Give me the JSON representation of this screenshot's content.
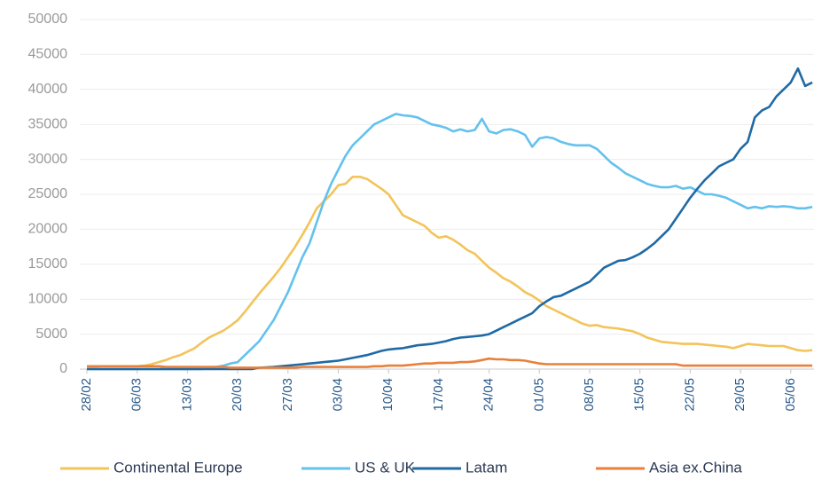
{
  "chart_data": {
    "type": "line",
    "categories": [
      "28/02",
      null,
      null,
      null,
      null,
      null,
      null,
      "06/03",
      null,
      null,
      null,
      null,
      null,
      null,
      "13/03",
      null,
      null,
      null,
      null,
      null,
      null,
      "20/03",
      null,
      null,
      null,
      null,
      null,
      null,
      "27/03",
      null,
      null,
      null,
      null,
      null,
      null,
      "03/04",
      null,
      null,
      null,
      null,
      null,
      null,
      "10/04",
      null,
      null,
      null,
      null,
      null,
      null,
      "17/04",
      null,
      null,
      null,
      null,
      null,
      null,
      "24/04",
      null,
      null,
      null,
      null,
      null,
      null,
      "01/05",
      null,
      null,
      null,
      null,
      null,
      null,
      "08/05",
      null,
      null,
      null,
      null,
      null,
      null,
      "15/05",
      null,
      null,
      null,
      null,
      null,
      null,
      "22/05",
      null,
      null,
      null,
      null,
      null,
      null,
      "29/05",
      null,
      null,
      null,
      null,
      null,
      null,
      "05/06",
      null,
      null,
      null
    ],
    "series": [
      {
        "name": "Continental Europe",
        "color": "#f2c45a",
        "values": [
          300,
          300,
          400,
          400,
          400,
          400,
          400,
          400,
          500,
          700,
          1000,
          1300,
          1700,
          2000,
          2500,
          3000,
          3800,
          4500,
          5000,
          5500,
          6200,
          7000,
          8200,
          9500,
          10800,
          12000,
          13200,
          14500,
          16000,
          17500,
          19200,
          21000,
          23000,
          24000,
          25000,
          26300,
          26500,
          27500,
          27500,
          27200,
          26500,
          25800,
          25000,
          23500,
          22000,
          21500,
          21000,
          20500,
          19500,
          18800,
          19000,
          18500,
          17800,
          17000,
          16500,
          15500,
          14500,
          13800,
          13000,
          12500,
          11800,
          11000,
          10500,
          9800,
          9000,
          8500,
          8000,
          7500,
          7000,
          6500,
          6200,
          6300,
          6000,
          5900,
          5800,
          5600,
          5400,
          5000,
          4500,
          4200,
          3900,
          3800,
          3700,
          3600,
          3600,
          3600,
          3500,
          3400,
          3300,
          3200,
          3000,
          3300,
          3600,
          3500,
          3400,
          3300,
          3300,
          3300,
          3000,
          2700,
          2600,
          2700
        ]
      },
      {
        "name": "US & UK",
        "color": "#63c1ee",
        "values": [
          0,
          0,
          0,
          0,
          0,
          0,
          0,
          0,
          0,
          0,
          0,
          0,
          0,
          0,
          0,
          0,
          0,
          200,
          300,
          500,
          800,
          1000,
          2000,
          3000,
          4000,
          5500,
          7000,
          9000,
          11000,
          13500,
          16000,
          18000,
          21000,
          24000,
          26500,
          28500,
          30500,
          32000,
          33000,
          34000,
          35000,
          35500,
          36000,
          36500,
          36300,
          36200,
          36000,
          35500,
          35000,
          34800,
          34500,
          34000,
          34300,
          34000,
          34200,
          35800,
          34000,
          33700,
          34200,
          34300,
          34000,
          33500,
          31800,
          33000,
          33200,
          33000,
          32500,
          32200,
          32000,
          32000,
          32000,
          31500,
          30500,
          29500,
          28800,
          28000,
          27500,
          27000,
          26500,
          26200,
          26000,
          26000,
          26200,
          25800,
          26000,
          25500,
          25000,
          25000,
          24800,
          24500,
          24000,
          23500,
          23000,
          23200,
          23000,
          23300,
          23200,
          23300,
          23200,
          23000,
          23000,
          23200
        ]
      },
      {
        "name": "Latam",
        "color": "#1f6aa5",
        "values": [
          0,
          0,
          0,
          0,
          0,
          0,
          0,
          0,
          0,
          0,
          0,
          0,
          0,
          0,
          0,
          0,
          0,
          0,
          0,
          0,
          0,
          0,
          0,
          0,
          200,
          250,
          300,
          400,
          500,
          600,
          700,
          800,
          900,
          1000,
          1100,
          1200,
          1400,
          1600,
          1800,
          2000,
          2300,
          2600,
          2800,
          2900,
          3000,
          3200,
          3400,
          3500,
          3600,
          3800,
          4000,
          4300,
          4500,
          4600,
          4700,
          4800,
          5000,
          5500,
          6000,
          6500,
          7000,
          7500,
          8000,
          9000,
          9700,
          10300,
          10500,
          11000,
          11500,
          12000,
          12500,
          13500,
          14500,
          15000,
          15500,
          15600,
          16000,
          16500,
          17200,
          18000,
          19000,
          20000,
          21500,
          23000,
          24500,
          25800,
          27000,
          28000,
          29000,
          29500,
          30000,
          31500,
          32500,
          36000,
          37000,
          37500,
          39000,
          40000,
          41000,
          43000,
          40500,
          41000
        ]
      },
      {
        "name": "Asia ex.China",
        "color": "#e8803b",
        "values": [
          400,
          400,
          400,
          400,
          400,
          400,
          400,
          400,
          400,
          400,
          400,
          300,
          300,
          300,
          300,
          300,
          300,
          300,
          300,
          300,
          200,
          200,
          200,
          200,
          200,
          200,
          200,
          200,
          200,
          200,
          300,
          300,
          300,
          300,
          300,
          300,
          300,
          300,
          300,
          300,
          400,
          400,
          500,
          500,
          500,
          600,
          700,
          800,
          800,
          900,
          900,
          900,
          1000,
          1000,
          1100,
          1300,
          1500,
          1400,
          1400,
          1300,
          1300,
          1200,
          1000,
          800,
          700,
          700,
          700,
          700,
          700,
          700,
          700,
          700,
          700,
          700,
          700,
          700,
          700,
          700,
          700,
          700,
          700,
          700,
          700,
          500,
          500,
          500,
          500,
          500,
          500,
          500,
          500,
          500,
          500,
          500,
          500,
          500,
          500,
          500,
          500,
          500,
          500,
          500
        ]
      }
    ],
    "ylim": [
      0,
      50000
    ],
    "yticks": [
      0,
      5000,
      10000,
      15000,
      20000,
      25000,
      30000,
      35000,
      40000,
      45000,
      50000
    ],
    "grid": true
  }
}
